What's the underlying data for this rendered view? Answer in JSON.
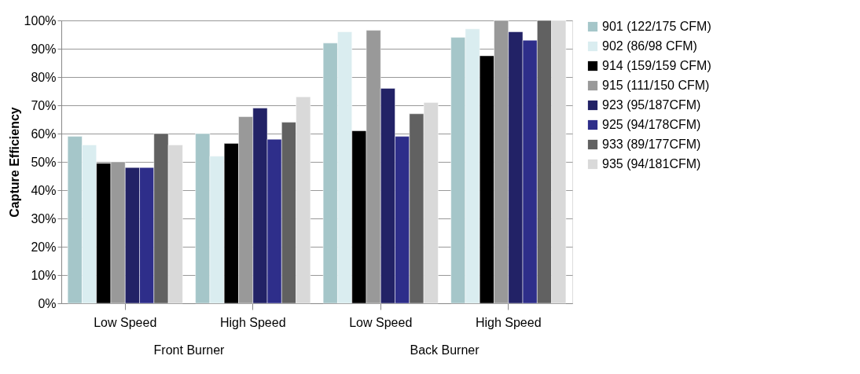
{
  "chart_data": {
    "type": "bar",
    "ylabel": "Capture Efficiency",
    "categories": [
      "Low Speed",
      "High Speed",
      "Low Speed",
      "High Speed"
    ],
    "annotations": [
      "Front Burner",
      "Back Burner"
    ],
    "series": [
      {
        "name": "901 (122/175 CFM)",
        "color": "#a5c6c9",
        "values": [
          59,
          60,
          92,
          94
        ]
      },
      {
        "name": "902 (86/98 CFM)",
        "color": "#daedf0",
        "values": [
          56,
          52,
          96,
          97
        ]
      },
      {
        "name": "914 (159/159 CFM)",
        "color": "#000000",
        "values": [
          49.5,
          56.5,
          61,
          87.5
        ]
      },
      {
        "name": "915 (111/150 CFM)",
        "color": "#999999",
        "values": [
          50,
          66,
          96.5,
          100
        ]
      },
      {
        "name": "923 (95/187CFM)",
        "color": "#222266",
        "values": [
          48,
          69,
          76,
          96
        ]
      },
      {
        "name": "925 (94/178CFM)",
        "color": "#2e2e8a",
        "values": [
          48,
          58,
          59,
          93
        ]
      },
      {
        "name": "933 (89/177CFM)",
        "color": "#616161",
        "values": [
          60,
          64,
          67,
          100
        ]
      },
      {
        "name": "935 (94/181CFM)",
        "color": "#d9d9d9",
        "values": [
          56,
          73,
          71,
          100
        ]
      }
    ],
    "ylim": [
      0,
      100
    ],
    "yticks": [
      {
        "value": 0,
        "label": "0%"
      },
      {
        "value": 10,
        "label": "10%"
      },
      {
        "value": 20,
        "label": "20%"
      },
      {
        "value": 30,
        "label": "30%"
      },
      {
        "value": 40,
        "label": "40%"
      },
      {
        "value": 50,
        "label": "50%"
      },
      {
        "value": 60,
        "label": "60%"
      },
      {
        "value": 70,
        "label": "70%"
      },
      {
        "value": 80,
        "label": "80%"
      },
      {
        "value": 90,
        "label": "90%"
      },
      {
        "value": 100,
        "label": "100%"
      }
    ],
    "grid": "y",
    "legend": "right"
  }
}
